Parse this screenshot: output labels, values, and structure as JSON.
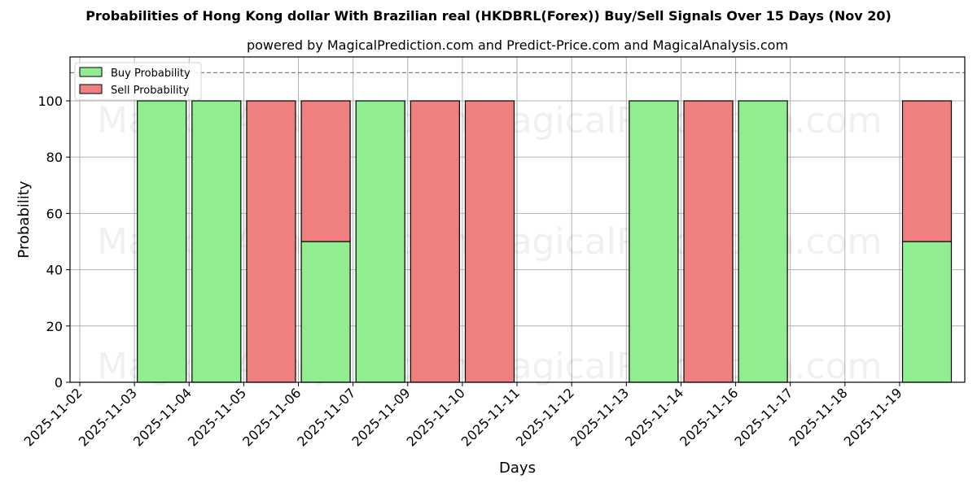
{
  "chart_data": {
    "type": "bar",
    "stacked": true,
    "title": "Probabilities of Hong Kong dollar With Brazilian real (HKDBRL(Forex)) Buy/Sell Signals Over 15 Days (Nov 20)",
    "subtitle": "powered by MagicalPrediction.com and Predict-Price.com and MagicalAnalysis.com",
    "xlabel": "Days",
    "ylabel": "Probability",
    "ylim": [
      0,
      115.6
    ],
    "yticks": [
      0,
      20,
      40,
      60,
      80,
      100
    ],
    "xtick_labels": [
      "2025-11-02",
      "2025-11-03",
      "2025-11-04",
      "2025-11-05",
      "2025-11-06",
      "2025-11-07",
      "2025-11-09",
      "2025-11-10",
      "2025-11-11",
      "2025-11-12",
      "2025-11-13",
      "2025-11-14",
      "2025-11-16",
      "2025-11-17",
      "2025-11-18",
      "2025-11-19"
    ],
    "categories": [
      "2025-11-03",
      "2025-11-04",
      "2025-11-05",
      "2025-11-06",
      "2025-11-07",
      "2025-11-09",
      "2025-11-10",
      "2025-11-13",
      "2025-11-14",
      "2025-11-16",
      "2025-11-19"
    ],
    "series": [
      {
        "name": "Buy Probability",
        "color": "#90ee90",
        "values": [
          100,
          100,
          0,
          50,
          100,
          0,
          0,
          100,
          0,
          100,
          50
        ]
      },
      {
        "name": "Sell Probability",
        "color": "#f08080",
        "values": [
          0,
          0,
          100,
          50,
          0,
          100,
          100,
          0,
          100,
          0,
          50
        ]
      }
    ],
    "reference_line": {
      "y": 110,
      "style": "dashed",
      "color": "#808080"
    },
    "grid": true,
    "legend_position": "upper left",
    "watermarks": [
      "MagicalAnalysis.com",
      "MagicalPrediction.com"
    ]
  }
}
